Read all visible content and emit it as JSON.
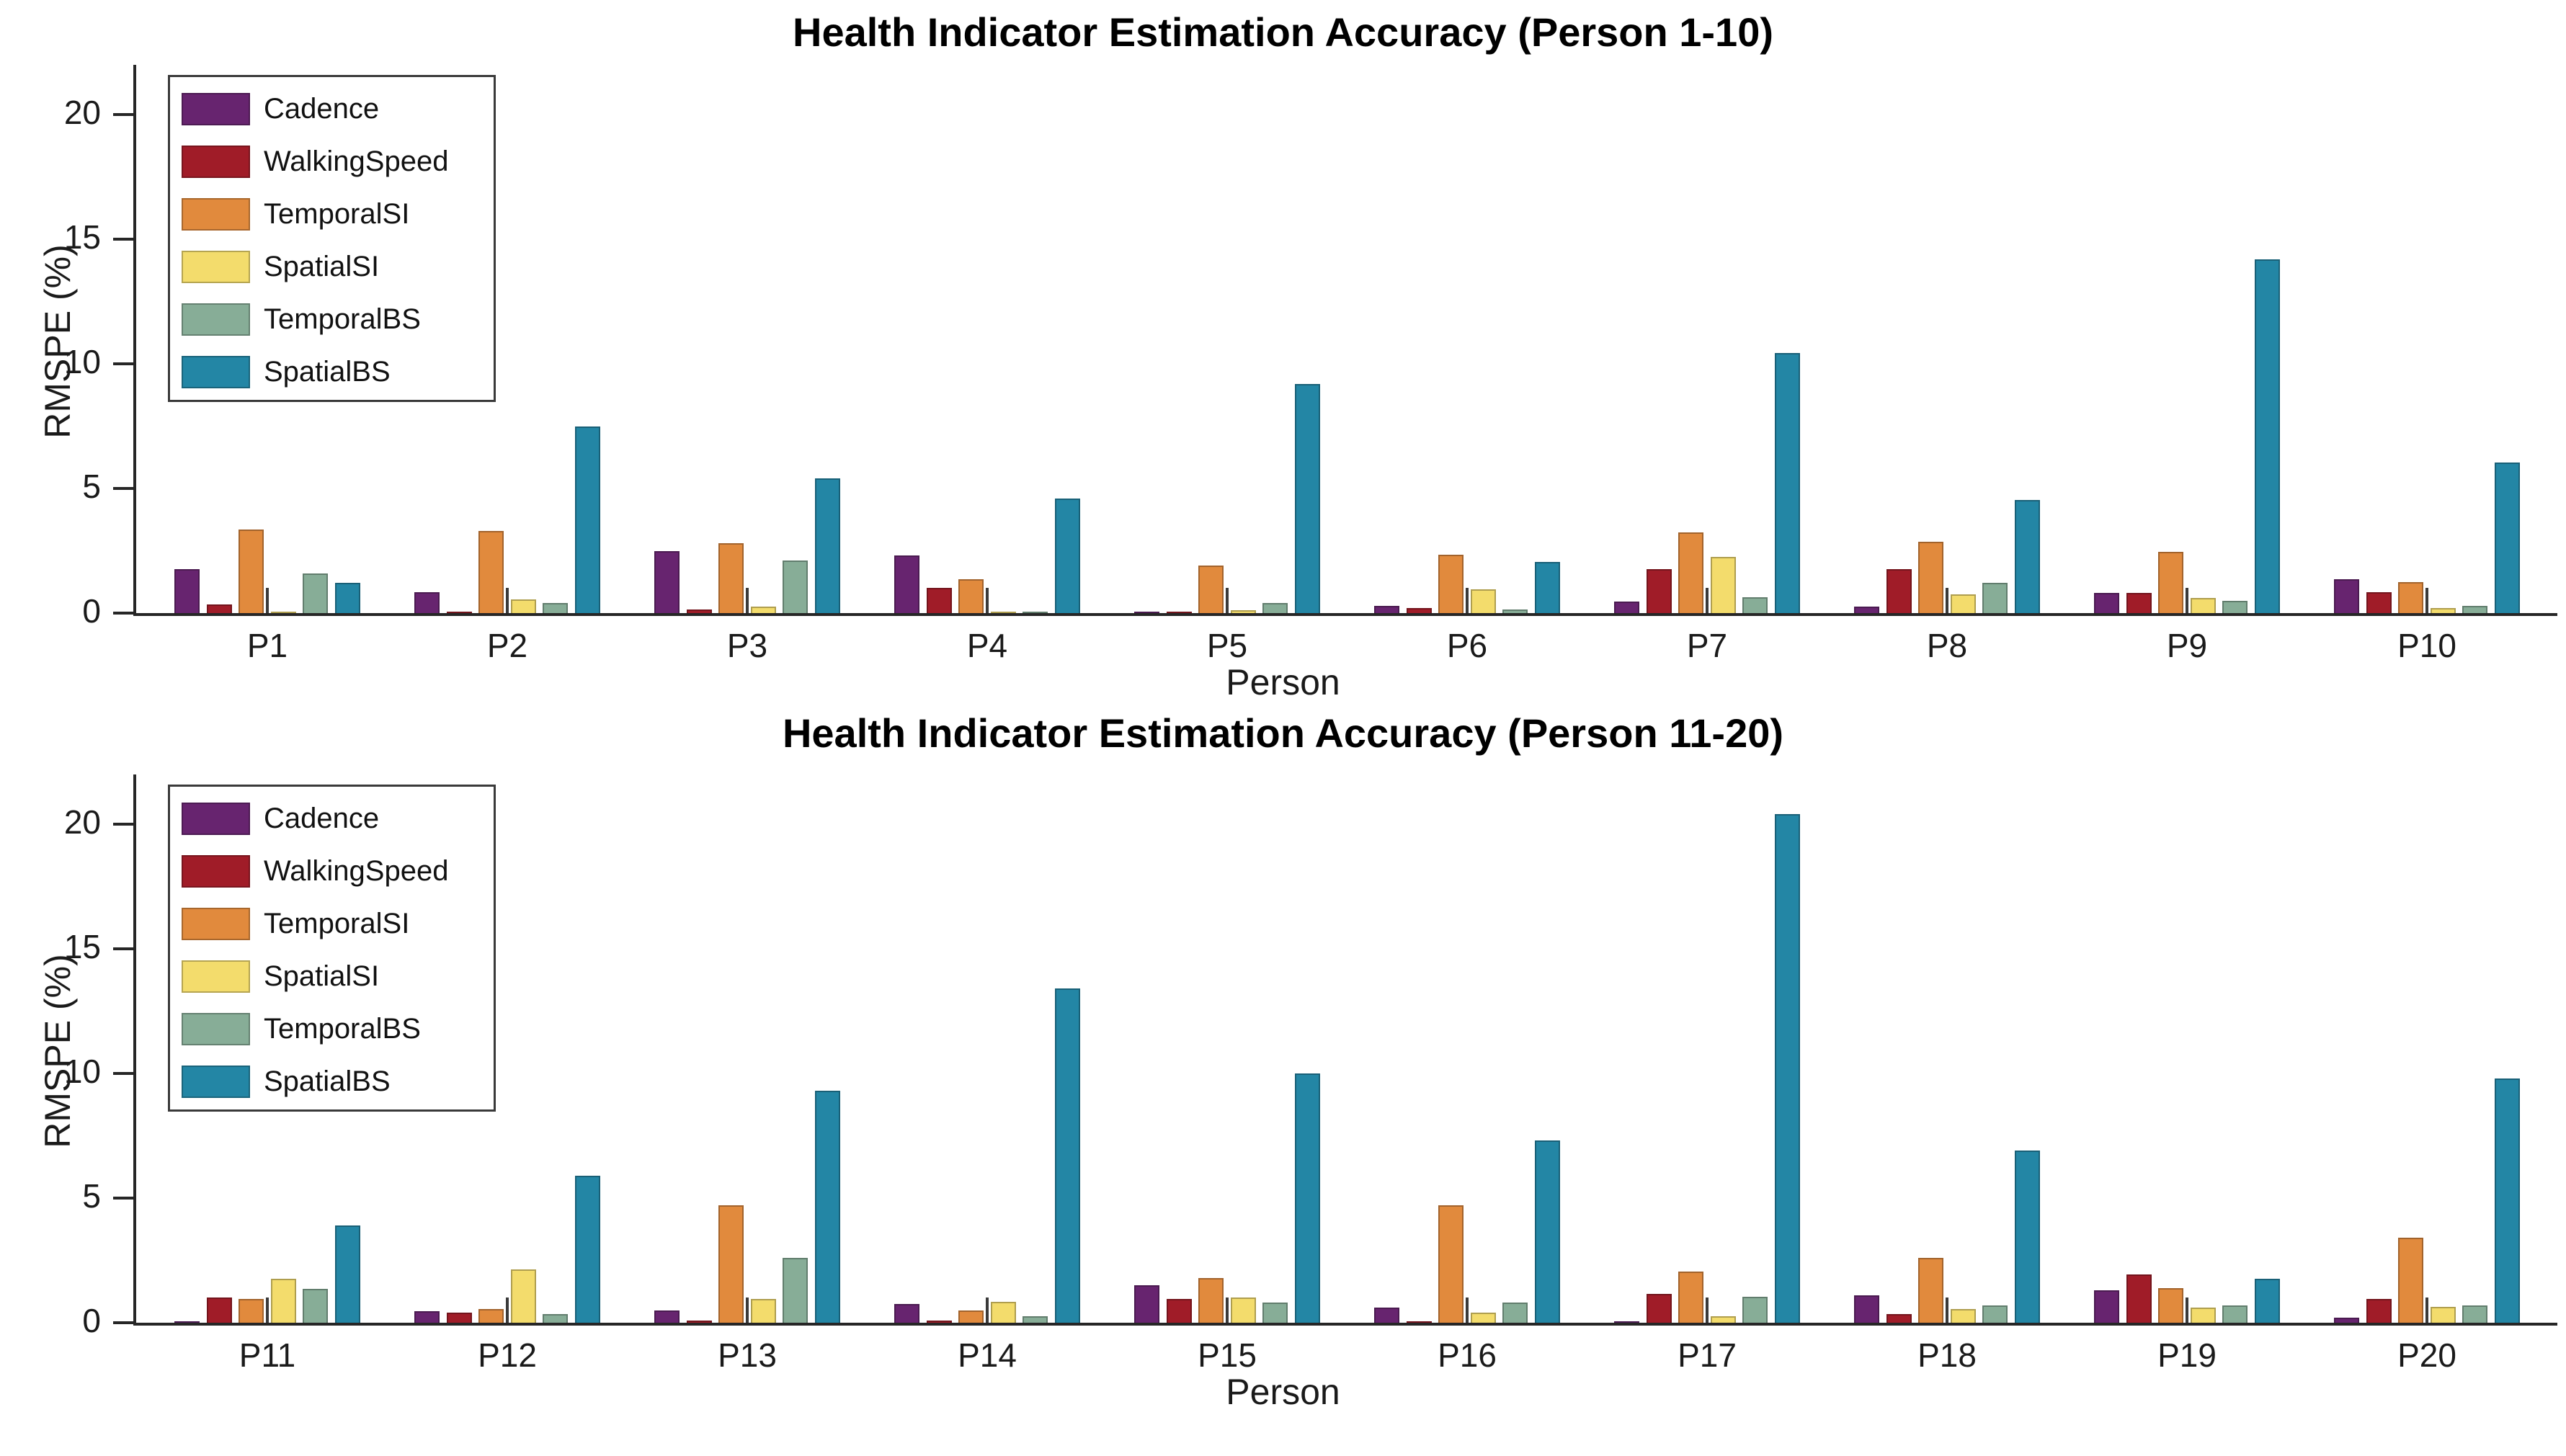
{
  "chart_data": [
    {
      "type": "bar",
      "title": "Health Indicator Estimation Accuracy (Person 1-10)",
      "xlabel": "Person",
      "ylabel": "RMSPE (%)",
      "ylim": [
        0,
        22
      ],
      "yticks": [
        0,
        5,
        10,
        15,
        20
      ],
      "grid": "off",
      "legend_position": "top-left-inside",
      "categories": [
        "P1",
        "P2",
        "P3",
        "P4",
        "P5",
        "P6",
        "P7",
        "P8",
        "P9",
        "P10"
      ],
      "marker_line_value": 1.0,
      "series": [
        {
          "name": "Cadence",
          "color": "#67246F",
          "values": [
            1.75,
            0.85,
            2.5,
            2.3,
            0.05,
            0.3,
            0.45,
            0.25,
            0.8,
            1.35
          ]
        },
        {
          "name": "WalkingSpeed",
          "color": "#A01C28",
          "values": [
            0.35,
            0.05,
            0.15,
            1.0,
            0.05,
            0.2,
            1.75,
            1.75,
            0.8,
            0.85
          ]
        },
        {
          "name": "TemporalSI",
          "color": "#E18A3D",
          "values": [
            3.35,
            3.3,
            2.8,
            1.35,
            1.9,
            2.35,
            3.25,
            2.85,
            2.45,
            1.25
          ]
        },
        {
          "name": "SpatialSI",
          "color": "#F3DC6C",
          "values": [
            0.05,
            0.55,
            0.25,
            0.05,
            0.12,
            0.95,
            2.25,
            0.75,
            0.6,
            0.2
          ]
        },
        {
          "name": "TemporalBS",
          "color": "#87AD97",
          "values": [
            1.6,
            0.4,
            2.1,
            0.05,
            0.4,
            0.15,
            0.65,
            1.2,
            0.5,
            0.3
          ]
        },
        {
          "name": "SpatialBS",
          "color": "#2386A5",
          "values": [
            1.2,
            7.5,
            5.4,
            4.6,
            9.2,
            2.05,
            10.45,
            4.55,
            14.2,
            6.05
          ]
        }
      ]
    },
    {
      "type": "bar",
      "title": "Health Indicator Estimation Accuracy (Person 11-20)",
      "xlabel": "Person",
      "ylabel": "RMSPE (%)",
      "ylim": [
        0,
        22
      ],
      "yticks": [
        0,
        5,
        10,
        15,
        20
      ],
      "grid": "off",
      "legend_position": "top-left-inside",
      "categories": [
        "P11",
        "P12",
        "P13",
        "P14",
        "P15",
        "P16",
        "P17",
        "P18",
        "P19",
        "P20"
      ],
      "marker_line_value": 1.0,
      "series": [
        {
          "name": "Cadence",
          "color": "#67246F",
          "values": [
            0.02,
            0.45,
            0.5,
            0.75,
            1.5,
            0.6,
            0.03,
            1.1,
            1.3,
            0.2
          ]
        },
        {
          "name": "WalkingSpeed",
          "color": "#A01C28",
          "values": [
            1.0,
            0.4,
            0.1,
            0.1,
            0.95,
            0.02,
            1.15,
            0.35,
            1.95,
            0.95
          ]
        },
        {
          "name": "TemporalSI",
          "color": "#E18A3D",
          "values": [
            0.95,
            0.55,
            4.7,
            0.5,
            1.8,
            4.7,
            2.05,
            2.6,
            1.4,
            3.4
          ]
        },
        {
          "name": "SpatialSI",
          "color": "#F3DC6C",
          "values": [
            1.75,
            2.15,
            0.95,
            0.85,
            1.0,
            0.4,
            0.25,
            0.55,
            0.6,
            0.65
          ]
        },
        {
          "name": "TemporalBS",
          "color": "#87AD97",
          "values": [
            1.35,
            0.35,
            2.6,
            0.25,
            0.8,
            0.8,
            1.05,
            0.7,
            0.7,
            0.7
          ]
        },
        {
          "name": "SpatialBS",
          "color": "#2386A5",
          "values": [
            3.9,
            5.9,
            9.3,
            13.4,
            10.0,
            7.3,
            20.4,
            6.9,
            1.75,
            9.8
          ]
        }
      ]
    }
  ]
}
